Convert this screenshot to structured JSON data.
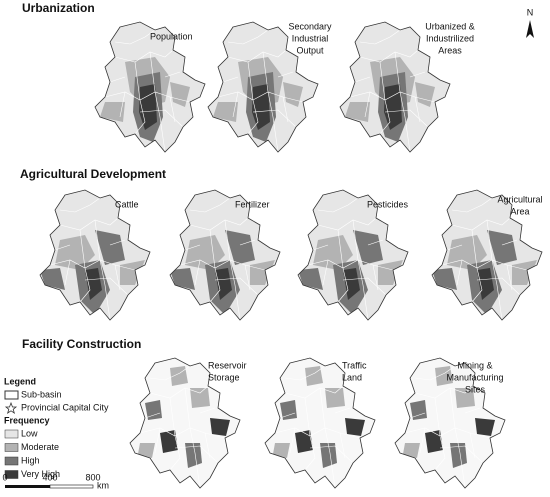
{
  "sections": [
    {
      "title": "Urbanization",
      "maps": [
        {
          "label": [
            "Population"
          ]
        },
        {
          "label": [
            "Secondary",
            "Industrial",
            "Output"
          ]
        },
        {
          "label": [
            "Urbanized &",
            "Industrilized",
            "Areas"
          ]
        }
      ]
    },
    {
      "title": "Agricultural Development",
      "maps": [
        {
          "label": [
            "Cattle"
          ]
        },
        {
          "label": [
            "Fertilizer"
          ]
        },
        {
          "label": [
            "Pesticides"
          ]
        },
        {
          "label": [
            "Agricultural",
            "Area"
          ]
        }
      ]
    },
    {
      "title": "Facility Construction",
      "maps": [
        {
          "label": [
            "Reservoir",
            "Storage"
          ]
        },
        {
          "label": [
            "Traffic",
            "Land"
          ]
        },
        {
          "label": [
            "Mining &",
            "Manufacturing",
            "Sites"
          ]
        }
      ]
    }
  ],
  "north": "N",
  "legend": {
    "title": "Legend",
    "items": [
      "Sub-basin",
      "Provincial Capital City"
    ],
    "frequency_title": "Frequency",
    "levels": [
      {
        "label": "Low",
        "color": "#e6e6e6"
      },
      {
        "label": "Moderate",
        "color": "#b3b3b3"
      },
      {
        "label": "High",
        "color": "#767676"
      },
      {
        "label": "Very High",
        "color": "#3a3a3a"
      }
    ]
  },
  "scale_bar": {
    "ticks": [
      0,
      400,
      800
    ],
    "unit": "km"
  }
}
